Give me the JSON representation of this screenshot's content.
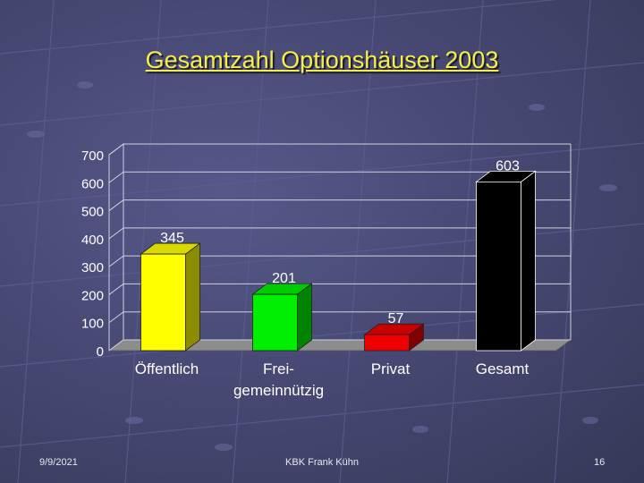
{
  "title": "Gesamtzahl Optionshäuser 2003",
  "footer": {
    "date": "9/9/2021",
    "center": "KBK Frank Kühn",
    "page": "16"
  },
  "colors": {
    "title": "#f5ee4a",
    "background": "#47496f"
  },
  "chart_data": {
    "type": "bar",
    "title": "Gesamtzahl Optionshäuser 2003",
    "categories": [
      [
        "Öffentlich"
      ],
      [
        "Frei-",
        "gemeinnützig"
      ],
      [
        "Privat"
      ],
      [
        "Gesamt"
      ]
    ],
    "values": [
      345,
      201,
      57,
      603
    ],
    "data_labels": [
      "345",
      "201",
      "57",
      "603"
    ],
    "colors": [
      "#ffff00",
      "#00ee00",
      "#ee0000",
      "#000000"
    ],
    "ylim": [
      0,
      700
    ],
    "yticks": [
      0,
      100,
      200,
      300,
      400,
      500,
      600,
      700
    ],
    "grid": true,
    "legend": "none",
    "bars_3d": true
  }
}
